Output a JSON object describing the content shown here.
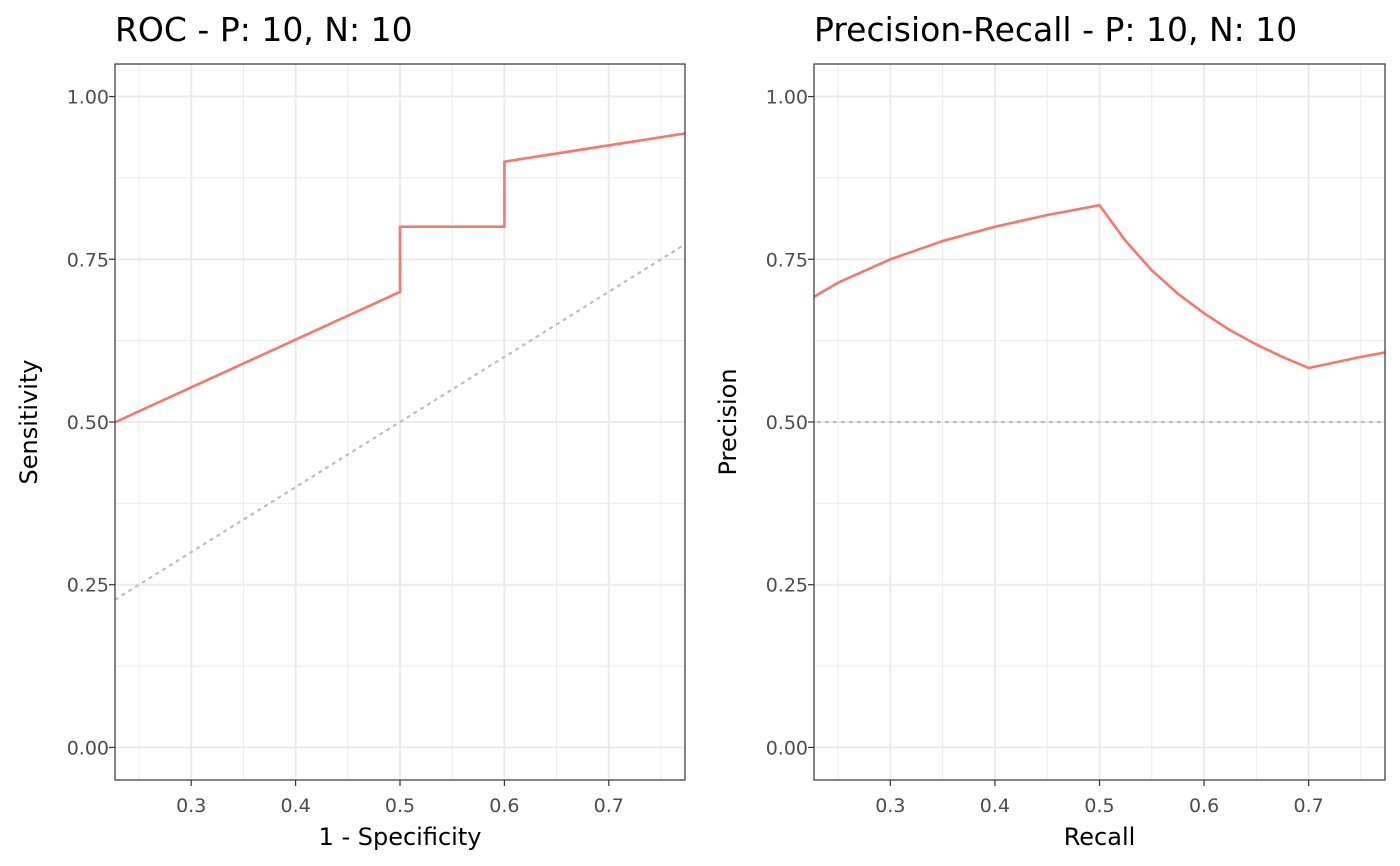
{
  "chart_data": [
    {
      "type": "line",
      "title": "ROC - P: 10, N: 10",
      "xlabel": "1 - Specificity",
      "ylabel": "Sensitivity",
      "xlim": [
        0.227,
        0.773
      ],
      "ylim": [
        -0.05,
        1.05
      ],
      "x_ticks": [
        0.3,
        0.4,
        0.5,
        0.6,
        0.7
      ],
      "x_tick_labels": [
        "0.3",
        "0.4",
        "0.5",
        "0.6",
        "0.7"
      ],
      "y_ticks": [
        0,
        0.25,
        0.5,
        0.75,
        1
      ],
      "y_tick_labels": [
        "0.00",
        "0.25",
        "0.50",
        "0.75",
        "1.00"
      ],
      "grid": true,
      "legend": "none",
      "colors": {
        "curve": "#f8766d",
        "reference": "#bdbdbd"
      },
      "series": [
        {
          "kind": "curve",
          "x": [
            0.0,
            0.5,
            0.5,
            0.6,
            0.6,
            1.0
          ],
          "y": [
            0.333,
            0.7,
            0.8,
            0.8,
            0.9,
            1.0
          ]
        },
        {
          "kind": "reference",
          "style": "dotted",
          "x": [
            0,
            1
          ],
          "y": [
            0,
            1
          ]
        }
      ]
    },
    {
      "type": "line",
      "title": "Precision-Recall - P: 10, N: 10",
      "xlabel": "Recall",
      "ylabel": "Precision",
      "xlim": [
        0.227,
        0.773
      ],
      "ylim": [
        -0.05,
        1.05
      ],
      "x_ticks": [
        0.3,
        0.4,
        0.5,
        0.6,
        0.7
      ],
      "x_tick_labels": [
        "0.3",
        "0.4",
        "0.5",
        "0.6",
        "0.7"
      ],
      "y_ticks": [
        0,
        0.25,
        0.5,
        0.75,
        1
      ],
      "y_tick_labels": [
        "0.00",
        "0.25",
        "0.50",
        "0.75",
        "1.00"
      ],
      "grid": true,
      "legend": "none",
      "colors": {
        "curve": "#f8766d",
        "reference": "#bdbdbd"
      },
      "series": [
        {
          "kind": "curve",
          "x": [
            0.2,
            0.25,
            0.3,
            0.35,
            0.4,
            0.45,
            0.5,
            0.525,
            0.55,
            0.575,
            0.6,
            0.625,
            0.65,
            0.675,
            0.7,
            0.75,
            0.8
          ],
          "y": [
            0.667,
            0.714,
            0.75,
            0.778,
            0.8,
            0.818,
            0.833,
            0.778,
            0.733,
            0.697,
            0.667,
            0.641,
            0.619,
            0.6,
            0.583,
            0.6,
            0.615
          ]
        },
        {
          "kind": "reference",
          "style": "dotted",
          "x": [
            0.2,
            0.8
          ],
          "y": [
            0.5,
            0.5
          ]
        }
      ]
    }
  ]
}
